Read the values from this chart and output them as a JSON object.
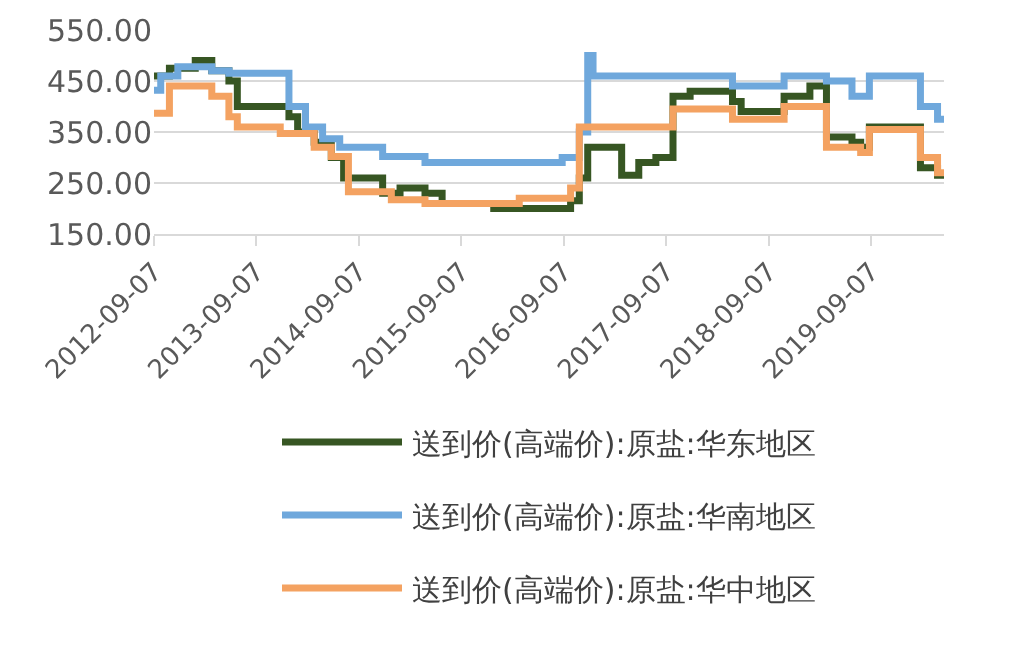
{
  "chart_data": {
    "type": "step",
    "legend": "bottom",
    "grid": "y",
    "xlim": [
      "2012-09-07",
      "2020-05-24"
    ],
    "xticks": [
      "2012-09-07",
      "2013-09-07",
      "2014-09-07",
      "2015-09-07",
      "2016-09-07",
      "2017-09-07",
      "2018-09-07",
      "2019-09-07"
    ],
    "ylim": [
      150,
      550
    ],
    "yticks": [
      {
        "value": 150,
        "label": "150.00"
      },
      {
        "value": 250,
        "label": "250.00"
      },
      {
        "value": 350,
        "label": "350.00"
      },
      {
        "value": 450,
        "label": "450.00"
      },
      {
        "value": 550,
        "label": "550.00"
      }
    ],
    "series": [
      {
        "name": "送到价(高端价):原盐:华东地区",
        "color": "#375623",
        "x": [
          "2012-09-07",
          "2012-11-01",
          "2013-02-01",
          "2013-04-01",
          "2013-06-01",
          "2013-07-01",
          "2014-01-01",
          "2014-02-01",
          "2014-04-01",
          "2014-06-01",
          "2014-07-15",
          "2014-12-01",
          "2015-02-01",
          "2015-05-01",
          "2015-07-01",
          "2016-01-01",
          "2016-10-01",
          "2016-11-01",
          "2016-12-01",
          "2017-04-01",
          "2017-06-01",
          "2017-08-01",
          "2017-10-01",
          "2017-12-01",
          "2018-05-01",
          "2018-06-01",
          "2018-11-01",
          "2019-02-01",
          "2019-04-01",
          "2019-07-01",
          "2019-08-01",
          "2019-09-01",
          "2020-03-01",
          "2020-05-01",
          "2020-05-24"
        ],
        "values": [
          460,
          475,
          490,
          470,
          450,
          400,
          380,
          350,
          330,
          300,
          260,
          230,
          240,
          230,
          210,
          200,
          215,
          260,
          320,
          265,
          290,
          300,
          420,
          430,
          410,
          390,
          420,
          440,
          340,
          330,
          320,
          360,
          280,
          265,
          260
        ]
      },
      {
        "name": "送到价(高端价):原盐:华南地区",
        "color": "#6fa8dc",
        "x": [
          "2012-09-07",
          "2012-10-01",
          "2012-12-01",
          "2013-04-01",
          "2013-06-01",
          "2014-01-01",
          "2014-03-01",
          "2014-05-01",
          "2014-07-01",
          "2014-12-01",
          "2015-05-01",
          "2016-09-01",
          "2016-11-01",
          "2016-12-01",
          "2016-12-20",
          "2018-05-01",
          "2018-11-01",
          "2019-04-01",
          "2019-07-01",
          "2019-09-01",
          "2020-03-01",
          "2020-05-01",
          "2020-05-24"
        ],
        "values": [
          432,
          460,
          478,
          470,
          465,
          400,
          360,
          337,
          320,
          302,
          290,
          300,
          350,
          500,
          460,
          440,
          460,
          450,
          420,
          460,
          400,
          375,
          375
        ]
      },
      {
        "name": "送到价(高端价):原盐:华中地区",
        "color": "#f4a261",
        "x": [
          "2012-09-07",
          "2012-11-01",
          "2013-04-01",
          "2013-06-01",
          "2013-07-01",
          "2013-12-01",
          "2014-04-01",
          "2014-06-01",
          "2014-08-01",
          "2015-01-01",
          "2015-05-01",
          "2016-04-01",
          "2016-10-01",
          "2016-11-01",
          "2017-10-01",
          "2018-05-01",
          "2018-11-01",
          "2019-04-01",
          "2019-08-01",
          "2019-09-01",
          "2020-03-01",
          "2020-05-01",
          "2020-05-24"
        ],
        "values": [
          387,
          440,
          420,
          380,
          360,
          347,
          320,
          302,
          233,
          217,
          210,
          220,
          240,
          360,
          395,
          375,
          400,
          320,
          310,
          355,
          300,
          270,
          265
        ]
      }
    ]
  }
}
